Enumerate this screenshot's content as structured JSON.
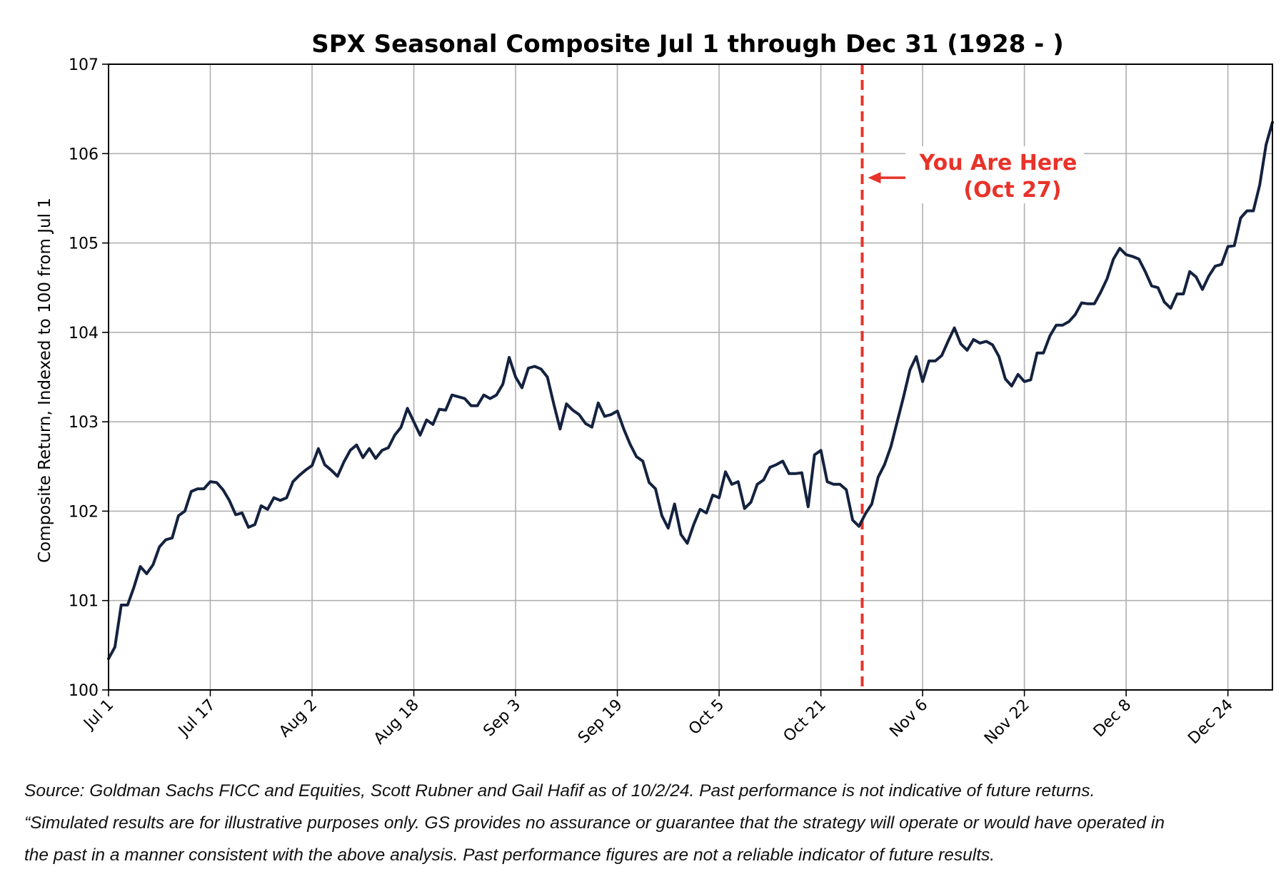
{
  "chart_data": {
    "type": "line",
    "title": "SPX Seasonal Composite Jul 1 through Dec 31 (1928 - )",
    "xlabel": "",
    "ylabel": "Composite Return, Indexed to 100 from Jul 1",
    "ylim": [
      100,
      107
    ],
    "yticks": [
      100,
      101,
      102,
      103,
      104,
      105,
      106,
      107
    ],
    "xlim": [
      0,
      183
    ],
    "xticks": [
      {
        "day": 0,
        "label": "Jul 1"
      },
      {
        "day": 16,
        "label": "Jul 17"
      },
      {
        "day": 32,
        "label": "Aug 2"
      },
      {
        "day": 48,
        "label": "Aug 18"
      },
      {
        "day": 64,
        "label": "Sep 3"
      },
      {
        "day": 80,
        "label": "Sep 19"
      },
      {
        "day": 96,
        "label": "Oct 5"
      },
      {
        "day": 112,
        "label": "Oct 21"
      },
      {
        "day": 128,
        "label": "Nov 6"
      },
      {
        "day": 144,
        "label": "Nov 22"
      },
      {
        "day": 160,
        "label": "Dec 8"
      },
      {
        "day": 176,
        "label": "Dec 24"
      }
    ],
    "grid": true,
    "series": [
      {
        "name": "SPX Seasonal Composite",
        "color": "#14223f",
        "points": [
          [
            0,
            100.35
          ],
          [
            1,
            100.48
          ],
          [
            2,
            100.95
          ],
          [
            3,
            100.95
          ],
          [
            4,
            101.15
          ],
          [
            5,
            101.38
          ],
          [
            6,
            101.3
          ],
          [
            7,
            101.4
          ],
          [
            8,
            101.6
          ],
          [
            9,
            101.68
          ],
          [
            10,
            101.7
          ],
          [
            11,
            101.95
          ],
          [
            12,
            102.0
          ],
          [
            13,
            102.22
          ],
          [
            14,
            102.25
          ],
          [
            15,
            102.25
          ],
          [
            16,
            102.33
          ],
          [
            17,
            102.32
          ],
          [
            18,
            102.24
          ],
          [
            19,
            102.12
          ],
          [
            20,
            101.96
          ],
          [
            21,
            101.98
          ],
          [
            22,
            101.82
          ],
          [
            23,
            101.85
          ],
          [
            24,
            102.06
          ],
          [
            25,
            102.02
          ],
          [
            26,
            102.15
          ],
          [
            27,
            102.12
          ],
          [
            28,
            102.15
          ],
          [
            29,
            102.33
          ],
          [
            30,
            102.4
          ],
          [
            31,
            102.46
          ],
          [
            32,
            102.51
          ],
          [
            33,
            102.7
          ],
          [
            34,
            102.52
          ],
          [
            35,
            102.46
          ],
          [
            36,
            102.39
          ],
          [
            37,
            102.55
          ],
          [
            38,
            102.68
          ],
          [
            39,
            102.74
          ],
          [
            40,
            102.6
          ],
          [
            41,
            102.7
          ],
          [
            42,
            102.59
          ],
          [
            43,
            102.68
          ],
          [
            44,
            102.71
          ],
          [
            45,
            102.85
          ],
          [
            46,
            102.94
          ],
          [
            47,
            103.15
          ],
          [
            48,
            103.0
          ],
          [
            49,
            102.85
          ],
          [
            50,
            103.02
          ],
          [
            51,
            102.97
          ],
          [
            52,
            103.14
          ],
          [
            53,
            103.13
          ],
          [
            54,
            103.3
          ],
          [
            55,
            103.28
          ],
          [
            56,
            103.26
          ],
          [
            57,
            103.18
          ],
          [
            58,
            103.18
          ],
          [
            59,
            103.3
          ],
          [
            60,
            103.26
          ],
          [
            61,
            103.3
          ],
          [
            62,
            103.42
          ],
          [
            63,
            103.72
          ],
          [
            64,
            103.5
          ],
          [
            65,
            103.38
          ],
          [
            66,
            103.6
          ],
          [
            67,
            103.62
          ],
          [
            68,
            103.59
          ],
          [
            69,
            103.5
          ],
          [
            70,
            103.2
          ],
          [
            71,
            102.92
          ],
          [
            72,
            103.2
          ],
          [
            73,
            103.13
          ],
          [
            74,
            103.08
          ],
          [
            75,
            102.98
          ],
          [
            76,
            102.94
          ],
          [
            77,
            103.21
          ],
          [
            78,
            103.06
          ],
          [
            79,
            103.08
          ],
          [
            80,
            103.12
          ],
          [
            81,
            102.92
          ],
          [
            82,
            102.75
          ],
          [
            83,
            102.61
          ],
          [
            84,
            102.56
          ],
          [
            85,
            102.32
          ],
          [
            86,
            102.25
          ],
          [
            87,
            101.95
          ],
          [
            88,
            101.81
          ],
          [
            89,
            102.08
          ],
          [
            90,
            101.74
          ],
          [
            91,
            101.64
          ],
          [
            92,
            101.85
          ],
          [
            93,
            102.02
          ],
          [
            94,
            101.98
          ],
          [
            95,
            102.18
          ],
          [
            96,
            102.15
          ],
          [
            97,
            102.44
          ],
          [
            98,
            102.3
          ],
          [
            99,
            102.33
          ],
          [
            100,
            102.03
          ],
          [
            101,
            102.1
          ],
          [
            102,
            102.3
          ],
          [
            103,
            102.35
          ],
          [
            104,
            102.49
          ],
          [
            105,
            102.52
          ],
          [
            106,
            102.56
          ],
          [
            107,
            102.42
          ],
          [
            108,
            102.42
          ],
          [
            109,
            102.43
          ],
          [
            110,
            102.05
          ],
          [
            111,
            102.63
          ],
          [
            112,
            102.68
          ],
          [
            113,
            102.33
          ],
          [
            114,
            102.3
          ],
          [
            115,
            102.3
          ],
          [
            116,
            102.24
          ],
          [
            117,
            101.9
          ],
          [
            118,
            101.83
          ],
          [
            119,
            101.97
          ],
          [
            120,
            102.08
          ],
          [
            121,
            102.38
          ],
          [
            122,
            102.52
          ],
          [
            123,
            102.72
          ],
          [
            124,
            103.0
          ],
          [
            125,
            103.28
          ],
          [
            126,
            103.58
          ],
          [
            127,
            103.73
          ],
          [
            128,
            103.45
          ],
          [
            129,
            103.68
          ],
          [
            130,
            103.68
          ],
          [
            131,
            103.74
          ],
          [
            132,
            103.9
          ],
          [
            133,
            104.05
          ],
          [
            134,
            103.87
          ],
          [
            135,
            103.8
          ],
          [
            136,
            103.92
          ],
          [
            137,
            103.88
          ],
          [
            138,
            103.9
          ],
          [
            139,
            103.86
          ],
          [
            140,
            103.73
          ],
          [
            141,
            103.48
          ],
          [
            142,
            103.4
          ],
          [
            143,
            103.53
          ],
          [
            144,
            103.45
          ],
          [
            145,
            103.47
          ],
          [
            146,
            103.77
          ],
          [
            147,
            103.77
          ],
          [
            148,
            103.96
          ],
          [
            149,
            104.08
          ],
          [
            150,
            104.08
          ],
          [
            151,
            104.12
          ],
          [
            152,
            104.2
          ],
          [
            153,
            104.33
          ],
          [
            154,
            104.32
          ],
          [
            155,
            104.32
          ],
          [
            156,
            104.45
          ],
          [
            157,
            104.6
          ],
          [
            158,
            104.82
          ],
          [
            159,
            104.94
          ],
          [
            160,
            104.87
          ],
          [
            161,
            104.85
          ],
          [
            162,
            104.82
          ],
          [
            163,
            104.68
          ],
          [
            164,
            104.52
          ],
          [
            165,
            104.5
          ],
          [
            166,
            104.34
          ],
          [
            167,
            104.27
          ],
          [
            168,
            104.43
          ],
          [
            169,
            104.43
          ],
          [
            170,
            104.68
          ],
          [
            171,
            104.62
          ],
          [
            172,
            104.48
          ],
          [
            173,
            104.63
          ],
          [
            174,
            104.74
          ],
          [
            175,
            104.76
          ],
          [
            176,
            104.96
          ],
          [
            177,
            104.97
          ],
          [
            178,
            105.28
          ],
          [
            179,
            105.36
          ],
          [
            180,
            105.36
          ],
          [
            181,
            105.65
          ],
          [
            182,
            106.1
          ],
          [
            183,
            106.35
          ]
        ]
      }
    ],
    "marker": {
      "day": 118.5,
      "color": "#e8332a",
      "style": "dashed",
      "annotation_line1": "You Are Here",
      "annotation_line2": "(Oct 27)",
      "arrow_y": 105.73
    }
  },
  "footnote": {
    "line1": "Source: Goldman Sachs FICC and Equities, Scott Rubner and Gail Hafif as of 10/2/24. Past performance is not indicative of future returns.",
    "line2": "“Simulated results are for illustrative purposes only. GS provides no assurance or guarantee that the strategy will operate or would have operated in",
    "line3": "the past in a manner consistent with the above analysis. Past performance figures are not a reliable indicator of future results."
  }
}
